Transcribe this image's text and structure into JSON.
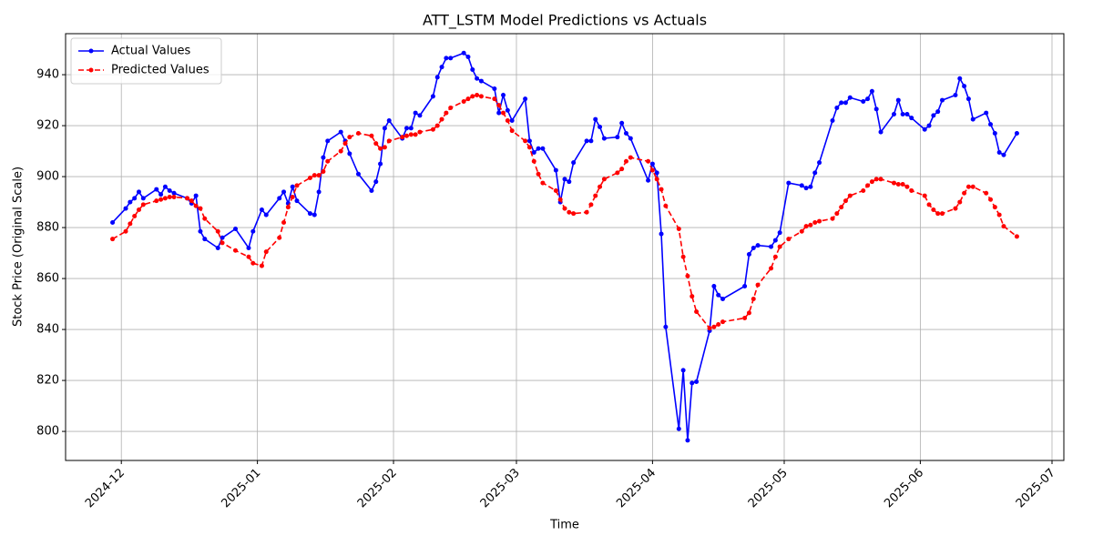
{
  "chart_data": {
    "type": "line",
    "title": "ATT_LSTM Model Predictions vs Actuals",
    "x_label": "Time",
    "y_label": "Stock Price (Original Scale)",
    "x": [
      20056,
      20059,
      20060,
      20061,
      20062,
      20063,
      20066,
      20067,
      20068,
      20069,
      20070,
      20073,
      20074,
      20075,
      20076,
      20077,
      20080,
      20081,
      20084,
      20087,
      20088,
      20090,
      20091,
      20094,
      20095,
      20096,
      20097,
      20098,
      20101,
      20102,
      20103,
      20104,
      20105,
      20108,
      20109,
      20110,
      20112,
      20115,
      20116,
      20117,
      20118,
      20119,
      20122,
      20123,
      20124,
      20125,
      20126,
      20129,
      20130,
      20131,
      20132,
      20133,
      20136,
      20137,
      20138,
      20139,
      20140,
      20143,
      20144,
      20145,
      20146,
      20147,
      20150,
      20151,
      20152,
      20153,
      20154,
      20157,
      20158,
      20159,
      20160,
      20161,
      20164,
      20165,
      20166,
      20167,
      20168,
      20171,
      20172,
      20173,
      20174,
      20178,
      20179,
      20180,
      20181,
      20182,
      20185,
      20186,
      20187,
      20188,
      20189,
      20192,
      20193,
      20194,
      20195,
      20200,
      20201,
      20202,
      20203,
      20206,
      20207,
      20208,
      20210,
      20213,
      20214,
      20215,
      20216,
      20217,
      20220,
      20221,
      20222,
      20223,
      20224,
      20227,
      20228,
      20229,
      20230,
      20231,
      20234,
      20235,
      20236,
      20237,
      20238,
      20241,
      20242,
      20243,
      20244,
      20245,
      20248,
      20249,
      20250,
      20251,
      20252,
      20255,
      20256,
      20257,
      20258,
      20259,
      20262
    ],
    "series": [
      {
        "name": "Actual Values",
        "color": "#0000ff",
        "linestyle": "solid",
        "values": [
          882,
          887.5,
          890,
          891.5,
          894,
          891.5,
          895,
          893,
          896,
          894.5,
          893.5,
          891.5,
          889.5,
          892.5,
          878.5,
          875.5,
          872,
          876,
          879.5,
          872,
          878.5,
          887,
          885,
          891.5,
          894,
          889.5,
          896,
          890.5,
          885.5,
          885,
          894,
          907.5,
          914,
          917.5,
          914,
          909,
          901,
          894.5,
          898,
          905,
          919,
          922,
          915,
          919,
          919,
          925,
          924,
          931.5,
          939,
          943,
          946.5,
          946.5,
          948.5,
          947,
          942,
          938.5,
          937.5,
          934.5,
          925,
          932,
          926,
          922,
          930.5,
          914,
          909.5,
          911,
          911,
          902.5,
          890,
          899,
          898,
          905.5,
          914,
          914,
          922.5,
          919.5,
          915,
          915.5,
          921,
          917,
          915,
          898.5,
          905,
          901.5,
          877.5,
          841,
          801,
          824,
          796.5,
          819,
          819.5,
          839.5,
          857,
          853.5,
          852,
          857,
          869.5,
          872,
          873,
          872.5,
          875,
          878,
          897.5,
          896.5,
          895.5,
          896,
          901.5,
          905.5,
          922,
          927,
          929,
          929,
          931,
          929.5,
          930.5,
          933.5,
          926.5,
          917.5,
          924.5,
          930,
          924.5,
          924.5,
          923,
          918.5,
          920,
          924,
          925.5,
          930,
          932,
          938.5,
          935.5,
          930.5,
          922.5,
          925,
          920.5,
          917,
          909.5,
          908.5,
          917
        ]
      },
      {
        "name": "Predicted Values",
        "color": "#ff0000",
        "linestyle": "dashed",
        "values": [
          875.5,
          878.5,
          881.5,
          884.5,
          887,
          889,
          890.5,
          891,
          891.5,
          892,
          892,
          891.5,
          890.5,
          888.5,
          887.5,
          883.5,
          878.5,
          874,
          871,
          868.5,
          866,
          865,
          870.5,
          876,
          882,
          888,
          892,
          896.5,
          899.5,
          900.5,
          900.5,
          902,
          906,
          910,
          913,
          915.5,
          917,
          916,
          913,
          911,
          911.5,
          914,
          915.5,
          916,
          916.5,
          916.5,
          917.5,
          918.5,
          920,
          922.5,
          925,
          927,
          929.5,
          930.5,
          931.5,
          932,
          931.5,
          930.5,
          928,
          925,
          922,
          918,
          914,
          911.5,
          906,
          901,
          897.5,
          894.5,
          891,
          887.5,
          886,
          885.5,
          886,
          889,
          892.5,
          896,
          899,
          901.5,
          903,
          906,
          907.5,
          906,
          902.5,
          899,
          895,
          888.5,
          879.5,
          868.5,
          861,
          853,
          847,
          840.5,
          841,
          842,
          843,
          844.5,
          846.5,
          852,
          857.5,
          864,
          868.5,
          872.5,
          875.5,
          878.5,
          880.5,
          881,
          882,
          882.5,
          883.5,
          885.5,
          888,
          890.5,
          892.5,
          894.5,
          896.5,
          898,
          899,
          899,
          897.5,
          897,
          897,
          896,
          894.5,
          892.5,
          889,
          887,
          885.5,
          885.5,
          887.5,
          890,
          893.5,
          896,
          896,
          893.5,
          891,
          888,
          885,
          880.5,
          876.5
        ]
      }
    ],
    "xlim": [
      20045.3,
      20272.7
    ],
    "xticks": [
      {
        "value": 20058,
        "label": "2024-12"
      },
      {
        "value": 20089,
        "label": "2025-01"
      },
      {
        "value": 20120,
        "label": "2025-02"
      },
      {
        "value": 20148,
        "label": "2025-03"
      },
      {
        "value": 20179,
        "label": "2025-04"
      },
      {
        "value": 20209,
        "label": "2025-05"
      },
      {
        "value": 20240,
        "label": "2025-06"
      },
      {
        "value": 20270,
        "label": "2025-07"
      }
    ],
    "ylim": [
      788.6,
      956.1
    ],
    "yticks": [
      800,
      820,
      840,
      860,
      880,
      900,
      920,
      940
    ],
    "grid": true,
    "legend": "upper left"
  }
}
